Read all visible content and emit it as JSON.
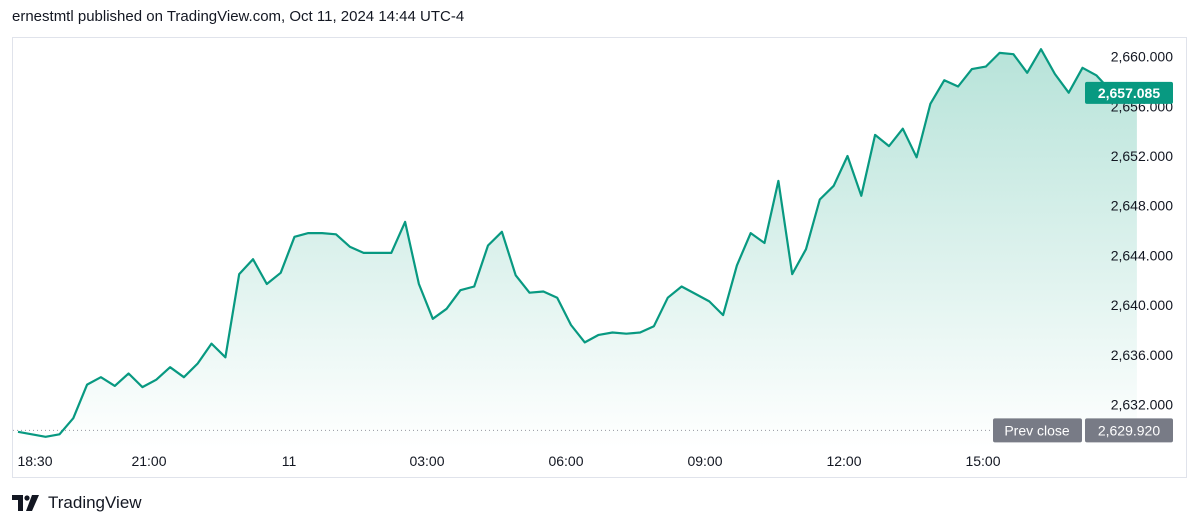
{
  "header": {
    "published_text": "ernestmtl published on TradingView.com, Oct 11, 2024 14:44 UTC-4"
  },
  "footer": {
    "brand": "TradingView",
    "logo_icon": "tradingview-logo-icon"
  },
  "colors": {
    "line": "#089981",
    "fill_top": "#b7e3d9",
    "last_price_tag": "#089981",
    "prev_close_tag": "#787b86",
    "prev_close_line": "#9598a1"
  },
  "chart_data": {
    "type": "area",
    "ylim": [
      2628.5,
      2661.5
    ],
    "y_ticks": [
      {
        "value": 2660,
        "label": "2,660.000"
      },
      {
        "value": 2656,
        "label": "2,656.000"
      },
      {
        "value": 2652,
        "label": "2,652.000"
      },
      {
        "value": 2648,
        "label": "2,648.000"
      },
      {
        "value": 2644,
        "label": "2,644.000"
      },
      {
        "value": 2640,
        "label": "2,640.000"
      },
      {
        "value": 2636,
        "label": "2,636.000"
      },
      {
        "value": 2632,
        "label": "2,632.000"
      }
    ],
    "x_ticks": [
      "18:30",
      "21:00",
      "11",
      "03:00",
      "06:00",
      "09:00",
      "12:00",
      "15:00"
    ],
    "last_price": {
      "value": 2657.085,
      "label": "2,657.085"
    },
    "prev_close": {
      "value": 2629.92,
      "label": "Prev close",
      "value_label": "2,629.920"
    },
    "points": [
      [
        "18:30",
        2629.8
      ],
      [
        "18:45",
        2629.6
      ],
      [
        "19:00",
        2629.4
      ],
      [
        "19:15",
        2629.6
      ],
      [
        "19:30",
        2630.9
      ],
      [
        "19:45",
        2633.6
      ],
      [
        "20:00",
        2634.2
      ],
      [
        "20:15",
        2633.5
      ],
      [
        "20:30",
        2634.5
      ],
      [
        "20:45",
        2633.4
      ],
      [
        "21:00",
        2634.0
      ],
      [
        "21:15",
        2635.0
      ],
      [
        "21:30",
        2634.2
      ],
      [
        "21:45",
        2635.3
      ],
      [
        "22:00",
        2636.9
      ],
      [
        "22:15",
        2635.8
      ],
      [
        "22:30",
        2642.5
      ],
      [
        "22:45",
        2643.7
      ],
      [
        "23:00",
        2641.7
      ],
      [
        "23:15",
        2642.6
      ],
      [
        "23:30",
        2645.5
      ],
      [
        "23:45",
        2645.8
      ],
      [
        "00:00",
        2645.8
      ],
      [
        "00:15",
        2645.7
      ],
      [
        "00:30",
        2644.7
      ],
      [
        "00:45",
        2644.2
      ],
      [
        "01:00",
        2644.2
      ],
      [
        "01:15",
        2644.2
      ],
      [
        "01:30",
        2646.7
      ],
      [
        "01:45",
        2641.7
      ],
      [
        "02:00",
        2638.9
      ],
      [
        "02:15",
        2639.7
      ],
      [
        "02:30",
        2641.2
      ],
      [
        "02:45",
        2641.5
      ],
      [
        "03:00",
        2644.8
      ],
      [
        "03:15",
        2645.9
      ],
      [
        "03:30",
        2642.4
      ],
      [
        "03:45",
        2641.0
      ],
      [
        "04:00",
        2641.1
      ],
      [
        "04:15",
        2640.6
      ],
      [
        "04:30",
        2638.4
      ],
      [
        "04:45",
        2637.0
      ],
      [
        "05:00",
        2637.6
      ],
      [
        "05:15",
        2637.8
      ],
      [
        "05:30",
        2637.7
      ],
      [
        "05:45",
        2637.8
      ],
      [
        "06:00",
        2638.3
      ],
      [
        "06:15",
        2640.6
      ],
      [
        "06:30",
        2641.5
      ],
      [
        "06:45",
        2640.9
      ],
      [
        "07:00",
        2640.3
      ],
      [
        "07:15",
        2639.2
      ],
      [
        "07:30",
        2643.2
      ],
      [
        "07:45",
        2645.8
      ],
      [
        "08:00",
        2645.0
      ],
      [
        "08:15",
        2650.0
      ],
      [
        "08:30",
        2642.5
      ],
      [
        "08:45",
        2644.5
      ],
      [
        "09:00",
        2648.5
      ],
      [
        "09:15",
        2649.6
      ],
      [
        "09:30",
        2652.0
      ],
      [
        "09:45",
        2648.8
      ],
      [
        "10:00",
        2653.7
      ],
      [
        "10:15",
        2652.8
      ],
      [
        "10:30",
        2654.2
      ],
      [
        "10:45",
        2651.9
      ],
      [
        "11:00",
        2656.2
      ],
      [
        "11:15",
        2658.1
      ],
      [
        "11:30",
        2657.6
      ],
      [
        "11:45",
        2659.0
      ],
      [
        "12:00",
        2659.2
      ],
      [
        "12:15",
        2660.3
      ],
      [
        "12:30",
        2660.2
      ],
      [
        "12:45",
        2658.7
      ],
      [
        "13:00",
        2660.6
      ],
      [
        "13:15",
        2658.6
      ],
      [
        "13:30",
        2657.1
      ],
      [
        "13:45",
        2659.1
      ],
      [
        "14:00",
        2658.5
      ],
      [
        "14:15",
        2657.3
      ],
      [
        "14:30",
        2656.5
      ],
      [
        "14:44",
        2657.085
      ]
    ]
  }
}
